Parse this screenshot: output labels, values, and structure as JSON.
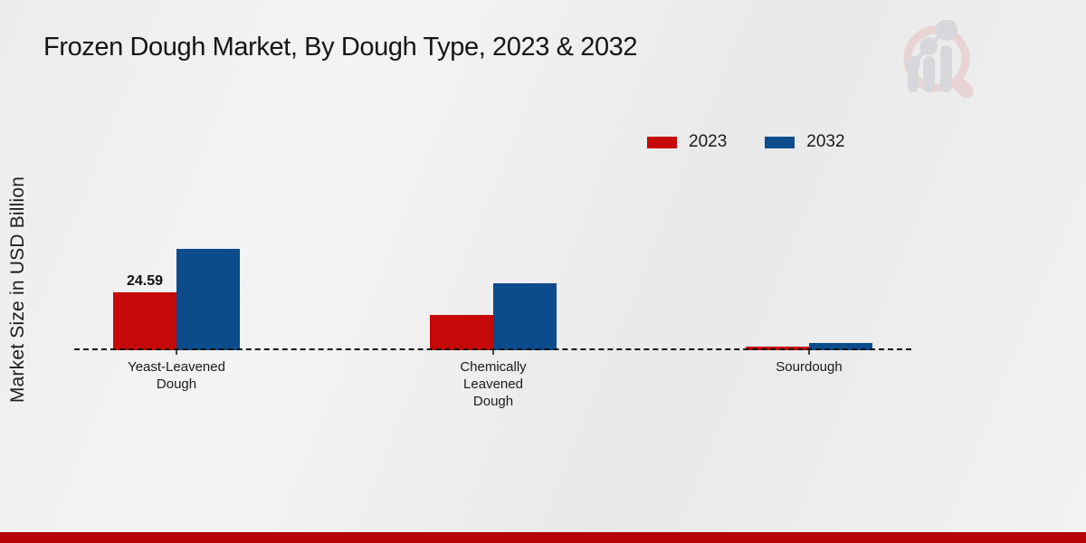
{
  "title": "Frozen Dough Market, By Dough Type, 2023 & 2032",
  "y_axis_label": "Market Size in USD Billion",
  "legend": {
    "position": "upper-right",
    "items": [
      {
        "label": "2023",
        "color": "#c50909"
      },
      {
        "label": "2032",
        "color": "#0c4c8c"
      }
    ]
  },
  "watermark_icon": "magnifier-bar-chart-logo",
  "footer": {
    "bar_color": "#b50404"
  },
  "chart_data": {
    "type": "bar",
    "title": "Frozen Dough Market, By Dough Type, 2023 & 2032",
    "xlabel": "",
    "ylabel": "Market Size in USD Billion",
    "categories": [
      "Yeast-Leavened Dough",
      "Chemically Leavened Dough",
      "Sourdough"
    ],
    "series": [
      {
        "name": "2023",
        "color": "#c50909",
        "values": [
          24.59,
          15.0,
          1.5
        ],
        "value_labels": [
          "24.59",
          null,
          null
        ]
      },
      {
        "name": "2032",
        "color": "#0c4c8c",
        "values": [
          43.0,
          28.4,
          3.1
        ],
        "value_labels": [
          null,
          null,
          null
        ]
      }
    ],
    "ylim": [
      0,
      48
    ],
    "grid": false,
    "axis_line": "dashed-baseline-at-zero",
    "legend_position": "upper-right"
  }
}
